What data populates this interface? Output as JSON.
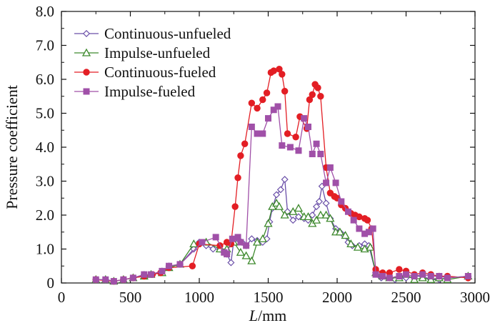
{
  "chart_data": {
    "type": "line",
    "title": "",
    "xlabel": "L/mm",
    "xlabel_italic_part": "L",
    "xlabel_rest": "/mm",
    "ylabel": "Pressure coefficient",
    "xlim": [
      0,
      3000
    ],
    "ylim": [
      0,
      8.0
    ],
    "xticks": [
      0,
      500,
      1000,
      1500,
      2000,
      2500,
      3000
    ],
    "yticks": [
      0,
      1.0,
      2.0,
      3.0,
      4.0,
      5.0,
      6.0,
      7.0,
      8.0
    ],
    "xtick_labels": [
      "0",
      "500",
      "1000",
      "1500",
      "2000",
      "2500",
      "3000"
    ],
    "ytick_labels": [
      "0",
      "1.0",
      "2.0",
      "3.0",
      "4.0",
      "5.0",
      "6.0",
      "7.0",
      "8.0"
    ],
    "grid": false,
    "legend_position": "top-left",
    "series": [
      {
        "name": "Continuous-unfueled",
        "color": "#6a4fa8",
        "marker": "diamond-open",
        "x": [
          250,
          320,
          380,
          450,
          520,
          600,
          650,
          730,
          780,
          860,
          960,
          1000,
          1050,
          1100,
          1150,
          1180,
          1200,
          1230,
          1250,
          1280,
          1310,
          1340,
          1380,
          1420,
          1460,
          1490,
          1510,
          1530,
          1560,
          1590,
          1620,
          1640,
          1680,
          1720,
          1760,
          1790,
          1820,
          1850,
          1870,
          1890,
          1920,
          1950,
          1990,
          2020,
          2050,
          2080,
          2110,
          2160,
          2200,
          2230,
          2280,
          2320,
          2380,
          2420,
          2500,
          2560,
          2620,
          2680,
          2740,
          2800,
          2950
        ],
        "y": [
          0.1,
          0.1,
          0.05,
          0.1,
          0.15,
          0.25,
          0.25,
          0.35,
          0.5,
          0.55,
          1.0,
          1.2,
          1.1,
          1.0,
          1.0,
          0.9,
          0.85,
          0.6,
          1.25,
          1.3,
          1.2,
          1.1,
          1.3,
          1.25,
          1.2,
          1.3,
          1.8,
          2.2,
          2.6,
          2.75,
          3.05,
          2.1,
          1.85,
          1.95,
          1.9,
          1.85,
          2.0,
          2.25,
          2.4,
          2.85,
          2.35,
          1.9,
          1.6,
          1.5,
          1.4,
          1.2,
          1.1,
          1.1,
          1.15,
          1.1,
          0.3,
          0.15,
          0.15,
          0.1,
          0.15,
          0.2,
          0.2,
          0.1,
          0.1,
          0.15,
          0.2
        ]
      },
      {
        "name": "Impulse-unfueled",
        "color": "#3f8a2e",
        "marker": "triangle-open",
        "x": [
          250,
          320,
          380,
          450,
          520,
          600,
          650,
          730,
          780,
          860,
          960,
          1050,
          1150,
          1200,
          1250,
          1300,
          1340,
          1380,
          1420,
          1460,
          1500,
          1530,
          1560,
          1580,
          1620,
          1680,
          1720,
          1760,
          1790,
          1820,
          1850,
          1880,
          1920,
          1950,
          1990,
          2020,
          2060,
          2100,
          2150,
          2200,
          2240,
          2280,
          2330,
          2380,
          2450,
          2500,
          2560,
          2620,
          2680,
          2740,
          2800,
          2950
        ],
        "y": [
          0.1,
          0.1,
          0.05,
          0.1,
          0.15,
          0.2,
          0.25,
          0.3,
          0.45,
          0.55,
          1.15,
          1.2,
          1.0,
          1.0,
          1.2,
          0.9,
          0.8,
          0.65,
          1.2,
          1.3,
          1.75,
          2.25,
          2.35,
          2.25,
          2.0,
          2.1,
          2.2,
          1.95,
          1.95,
          1.75,
          1.85,
          2.0,
          2.0,
          1.9,
          1.5,
          1.5,
          1.4,
          1.15,
          1.05,
          1.0,
          1.05,
          0.3,
          0.2,
          0.15,
          0.15,
          0.25,
          0.1,
          0.15,
          0.1,
          0.15,
          0.1,
          0.2
        ]
      },
      {
        "name": "Continuous-fueled",
        "color": "#e31e24",
        "marker": "circle-filled",
        "x": [
          250,
          380,
          450,
          520,
          600,
          660,
          720,
          780,
          950,
          1000,
          1150,
          1200,
          1230,
          1260,
          1280,
          1300,
          1330,
          1380,
          1420,
          1460,
          1490,
          1520,
          1540,
          1580,
          1600,
          1620,
          1640,
          1700,
          1730,
          1780,
          1800,
          1820,
          1840,
          1860,
          1880,
          1920,
          1950,
          1980,
          2000,
          2030,
          2060,
          2100,
          2130,
          2160,
          2200,
          2220,
          2250,
          2280,
          2330,
          2380,
          2450,
          2500,
          2560,
          2620,
          2680,
          2740,
          2800,
          2950
        ],
        "y": [
          0.1,
          0.05,
          0.1,
          0.15,
          0.2,
          0.25,
          0.3,
          0.45,
          0.5,
          1.15,
          1.1,
          1.2,
          1.15,
          2.25,
          3.1,
          3.75,
          4.1,
          5.3,
          5.15,
          5.4,
          5.6,
          6.2,
          6.25,
          6.3,
          6.15,
          5.65,
          4.4,
          4.3,
          4.9,
          4.55,
          5.4,
          5.55,
          5.85,
          5.75,
          5.5,
          3.4,
          2.65,
          2.55,
          2.5,
          2.3,
          2.2,
          2.05,
          2.0,
          1.95,
          1.9,
          1.85,
          1.6,
          0.4,
          0.3,
          0.3,
          0.4,
          0.35,
          0.25,
          0.3,
          0.25,
          0.2,
          0.2,
          0.15
        ]
      },
      {
        "name": "Impulse-fueled",
        "color": "#a050a8",
        "marker": "square-filled",
        "x": [
          250,
          320,
          380,
          450,
          520,
          600,
          650,
          730,
          780,
          860,
          1020,
          1120,
          1180,
          1200,
          1240,
          1280,
          1300,
          1340,
          1380,
          1420,
          1460,
          1500,
          1540,
          1570,
          1600,
          1660,
          1720,
          1760,
          1790,
          1820,
          1850,
          1880,
          1920,
          1950,
          1990,
          2030,
          2080,
          2120,
          2160,
          2200,
          2230,
          2260,
          2280,
          2330,
          2380,
          2450,
          2500,
          2560,
          2620,
          2680,
          2740,
          2800,
          2950
        ],
        "y": [
          0.1,
          0.1,
          0.05,
          0.1,
          0.15,
          0.25,
          0.25,
          0.35,
          0.5,
          0.55,
          1.2,
          1.35,
          0.9,
          0.85,
          1.3,
          1.35,
          1.2,
          1.1,
          4.6,
          4.4,
          4.4,
          4.85,
          5.1,
          5.2,
          4.05,
          4.0,
          3.9,
          4.85,
          4.6,
          3.8,
          4.1,
          3.8,
          2.95,
          3.4,
          2.95,
          2.4,
          2.1,
          1.85,
          1.6,
          1.45,
          1.5,
          1.6,
          0.25,
          0.2,
          0.15,
          0.2,
          0.25,
          0.2,
          0.25,
          0.2,
          0.2,
          0.15,
          0.2
        ]
      }
    ]
  }
}
